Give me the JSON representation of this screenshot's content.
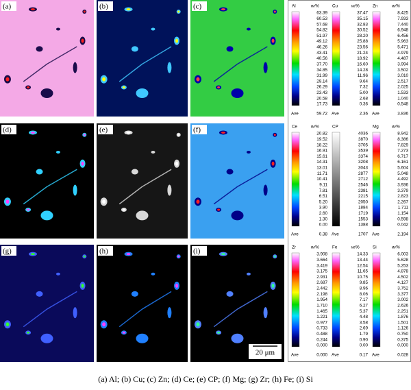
{
  "panels": [
    {
      "label": "(a)"
    },
    {
      "label": "(b)"
    },
    {
      "label": "(c)"
    },
    {
      "label": "(d)"
    },
    {
      "label": "(e)"
    },
    {
      "label": "(f)"
    },
    {
      "label": "(g)"
    },
    {
      "label": "(h)"
    },
    {
      "label": "(i)",
      "scale_bar": "20 μm"
    }
  ],
  "legends": [
    {
      "element": "Al",
      "unit": "w/%",
      "ticks": [
        "63.39",
        "60.53",
        "57.68",
        "54.82",
        "51.97",
        "49.12",
        "46.26",
        "43.41",
        "40.56",
        "37.70",
        "34.85",
        "31.99",
        "29.14",
        "26.29",
        "23.43",
        "20.58",
        "17.73"
      ],
      "ave_label": "Ave",
      "ave": "59.72"
    },
    {
      "element": "Cu",
      "unit": "w/%",
      "ticks": [
        "37.47",
        "35.15",
        "32.83",
        "30.52",
        "28.20",
        "25.88",
        "23.56",
        "21.24",
        "18.92",
        "16.60",
        "14.28",
        "11.96",
        "9.64",
        "7.32",
        "5.00",
        "2.68",
        "0.36"
      ],
      "ave_label": "Ave",
      "ave": "2.36"
    },
    {
      "element": "Zn",
      "unit": "w/%",
      "ticks": [
        "8.425",
        "7.933",
        "7.440",
        "6.948",
        "6.456",
        "5.963",
        "5.471",
        "4.979",
        "4.487",
        "3.994",
        "3.502",
        "3.010",
        "2.517",
        "2.025",
        "1.533",
        "1.040",
        "0.548"
      ],
      "ave_label": "Ave",
      "ave": "3.836"
    },
    {
      "element": "Ce",
      "unit": "w/%",
      "ticks": [
        "20.82",
        "19.52",
        "18.22",
        "16.91",
        "15.61",
        "14.31",
        "13.01",
        "11.71",
        "10.41",
        "9.11",
        "7.81",
        "6.51",
        "5.20",
        "3.90",
        "2.60",
        "1.30",
        "0.00"
      ],
      "ave_label": "Ave",
      "ave": "0.38"
    },
    {
      "element": "CP",
      "ticks": [
        "4036",
        "3870",
        "3705",
        "3539",
        "3374",
        "3208",
        "3043",
        "2877",
        "2712",
        "2546",
        "2381",
        "2215",
        "2050",
        "1884",
        "1719",
        "1553",
        "1388"
      ],
      "ave_label": "Ave",
      "ave": "1707"
    },
    {
      "element": "Mg",
      "unit": "w/%",
      "ticks": [
        "8.942",
        "8.386",
        "7.829",
        "7.273",
        "6.717",
        "6.161",
        "5.604",
        "5.048",
        "4.492",
        "3.936",
        "3.379",
        "2.823",
        "2.267",
        "1.711",
        "1.154",
        "0.598",
        "0.042"
      ],
      "ave_label": "Ave",
      "ave": "2.194"
    },
    {
      "element": "Zr",
      "unit": "w/%",
      "ticks": [
        "3.908",
        "3.664",
        "3.419",
        "3.175",
        "2.931",
        "2.687",
        "2.442",
        "2.198",
        "1.954",
        "1.710",
        "1.465",
        "1.221",
        "0.977",
        "0.733",
        "0.488",
        "0.244",
        "0.000"
      ],
      "ave_label": "Ave",
      "ave": "0.000"
    },
    {
      "element": "Fe",
      "unit": "w/%",
      "ticks": [
        "14.33",
        "13.44",
        "12.54",
        "11.65",
        "10.75",
        "9.85",
        "8.96",
        "8.06",
        "7.17",
        "6.27",
        "5.37",
        "4.48",
        "3.58",
        "2.69",
        "1.79",
        "0.90",
        "0.00"
      ],
      "ave_label": "Ave",
      "ave": "0.17"
    },
    {
      "element": "Si",
      "unit": "w/%",
      "ticks": [
        "6.003",
        "5.628",
        "5.253",
        "4.878",
        "4.502",
        "4.127",
        "3.752",
        "3.377",
        "3.002",
        "2.626",
        "2.251",
        "1.876",
        "1.501",
        "1.126",
        "0.750",
        "0.375",
        "0.000"
      ],
      "ave_label": "Ave",
      "ave": "0.028"
    }
  ],
  "caption": "(a) Al; (b) Cu; (c) Zn; (d) Ce; (e) CP; (f) Mg; (g) Zr; (h) Fe; (i) Si"
}
